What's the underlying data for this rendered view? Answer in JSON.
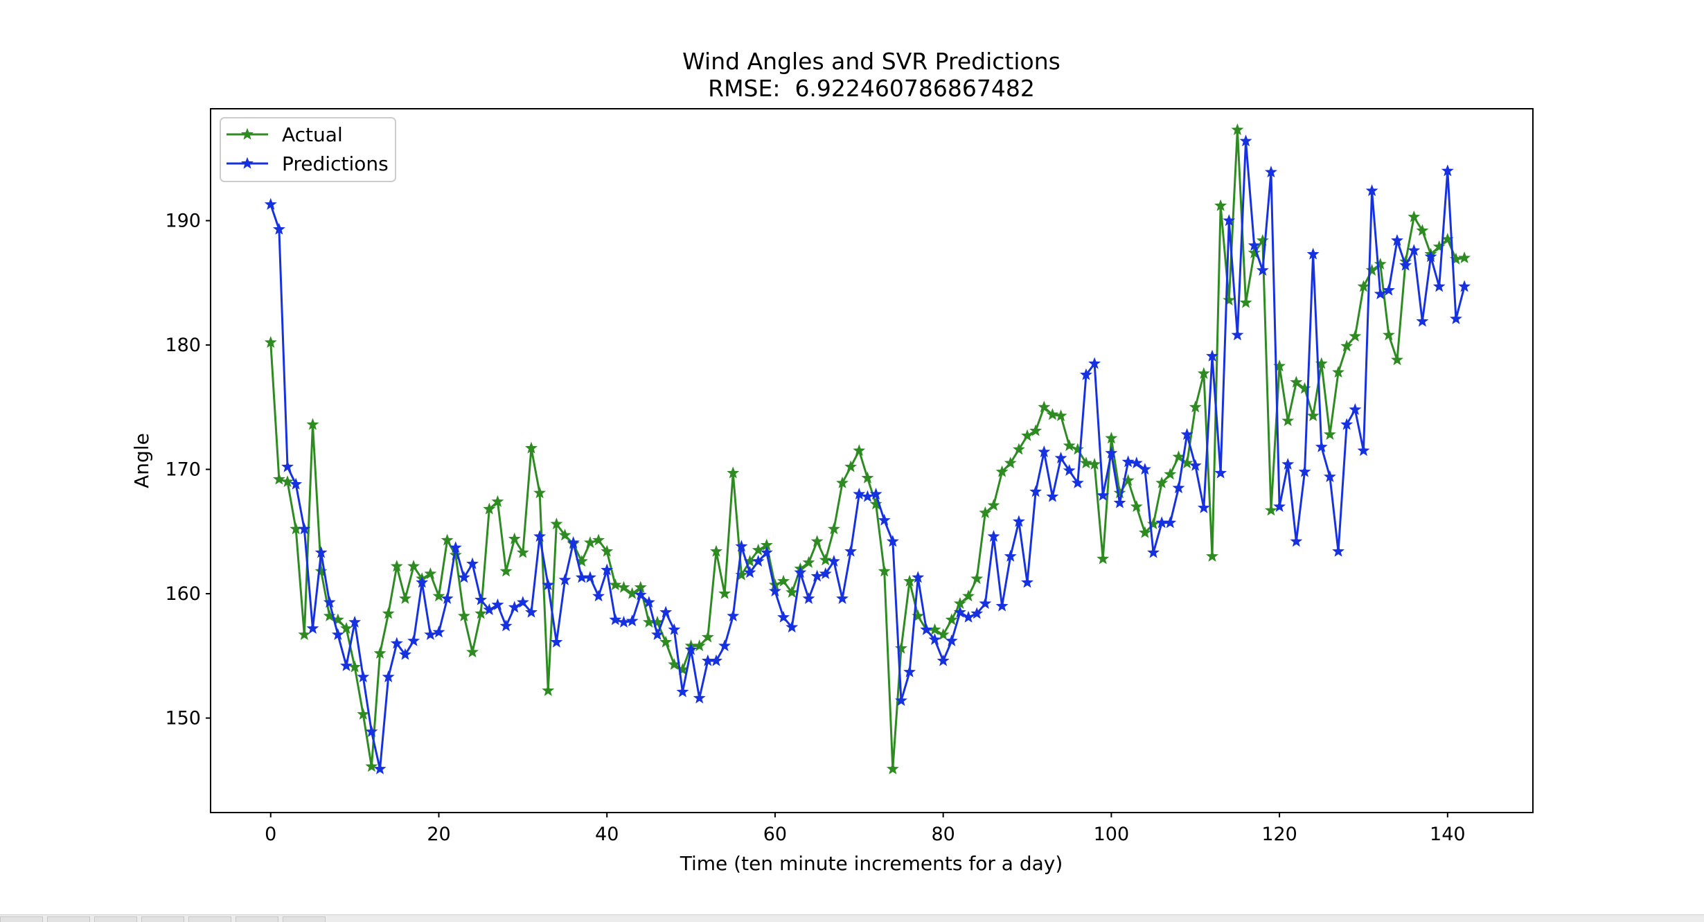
{
  "chart_data": {
    "type": "line",
    "title": "Wind Angles and SVR Predictions",
    "subtitle": "RMSE:  6.922460786867482",
    "xlabel": "Time (ten minute increments for a day)",
    "ylabel": "Angle",
    "xlim": [
      -7.15,
      150.15
    ],
    "ylim": [
      142.4,
      199.0
    ],
    "xticks": [
      0,
      20,
      40,
      60,
      80,
      100,
      120,
      140
    ],
    "yticks": [
      150,
      160,
      170,
      180,
      190
    ],
    "grid": false,
    "legend_position": "upper-left",
    "series": [
      {
        "name": "Actual",
        "color": "#2e8b22",
        "marker": "star",
        "values": [
          180.2,
          169.2,
          169.0,
          165.2,
          156.7,
          173.6,
          161.8,
          158.2,
          157.9,
          157.2,
          154.1,
          150.3,
          146.1,
          155.2,
          158.4,
          162.2,
          159.6,
          162.2,
          161.2,
          161.6,
          159.8,
          164.3,
          163.1,
          158.2,
          155.3,
          158.4,
          166.8,
          167.4,
          161.8,
          164.4,
          163.3,
          171.7,
          168.1,
          152.2,
          165.6,
          164.7,
          164.0,
          162.6,
          164.1,
          164.3,
          163.4,
          160.7,
          160.5,
          160.0,
          160.5,
          157.7,
          157.7,
          156.1,
          154.3,
          153.9,
          155.8,
          155.8,
          156.5,
          163.4,
          160.0,
          169.7,
          161.5,
          162.6,
          163.5,
          163.9,
          160.7,
          161.0,
          160.1,
          162.0,
          162.5,
          164.2,
          162.7,
          165.2,
          168.9,
          170.2,
          171.5,
          169.3,
          167.2,
          161.8,
          145.9,
          155.6,
          161.0,
          158.2,
          157.1,
          157.1,
          156.7,
          157.9,
          159.2,
          159.8,
          161.2,
          166.5,
          167.1,
          169.8,
          170.5,
          171.6,
          172.7,
          173.1,
          175.0,
          174.4,
          174.3,
          171.9,
          171.6,
          170.5,
          170.4,
          162.8,
          172.5,
          168.1,
          169.1,
          167.0,
          164.9,
          165.6,
          168.9,
          169.6,
          171.0,
          170.5,
          175.0,
          177.7,
          163.0,
          191.2,
          183.6,
          197.3,
          183.4,
          187.4,
          188.4,
          166.7,
          178.3,
          173.9,
          177.0,
          176.5,
          174.3,
          178.5,
          172.8,
          177.8,
          179.9,
          180.7,
          184.7,
          186.0,
          186.5,
          180.8,
          178.8,
          186.7,
          190.3,
          189.2,
          187.3,
          187.9,
          188.5,
          186.9,
          187.0
        ]
      },
      {
        "name": "Predictions",
        "color": "#1632e0",
        "marker": "star",
        "values": [
          191.3,
          189.3,
          170.2,
          168.8,
          165.2,
          157.2,
          163.3,
          159.3,
          156.7,
          154.2,
          157.7,
          153.3,
          148.9,
          145.9,
          153.3,
          156.0,
          155.1,
          156.2,
          160.9,
          156.7,
          156.9,
          159.6,
          163.7,
          161.3,
          162.4,
          159.5,
          158.7,
          159.1,
          157.4,
          158.9,
          159.3,
          158.5,
          164.6,
          160.7,
          156.1,
          161.1,
          164.1,
          161.3,
          161.3,
          159.8,
          161.9,
          157.9,
          157.7,
          157.8,
          159.9,
          159.3,
          156.7,
          158.5,
          157.1,
          152.1,
          155.5,
          151.6,
          154.6,
          154.6,
          155.8,
          158.2,
          163.8,
          161.7,
          162.6,
          163.3,
          160.2,
          158.1,
          157.3,
          161.7,
          159.6,
          161.4,
          161.6,
          162.6,
          159.6,
          163.4,
          168.0,
          167.8,
          168.0,
          165.9,
          164.2,
          151.4,
          153.7,
          161.3,
          157.1,
          156.3,
          154.6,
          156.2,
          158.5,
          158.1,
          158.4,
          159.2,
          164.6,
          159.0,
          163.0,
          165.8,
          160.9,
          168.2,
          171.4,
          167.8,
          170.9,
          169.9,
          168.9,
          177.6,
          178.5,
          167.9,
          171.3,
          167.3,
          170.6,
          170.5,
          170.0,
          163.3,
          165.7,
          165.7,
          168.5,
          172.8,
          170.3,
          166.9,
          179.1,
          169.7,
          190.0,
          180.8,
          196.4,
          188.0,
          186.0,
          193.9,
          167.0,
          170.4,
          164.2,
          169.8,
          187.3,
          171.8,
          169.4,
          163.4,
          173.6,
          174.8,
          171.5,
          192.4,
          184.1,
          184.4,
          188.4,
          186.4,
          187.6,
          181.9,
          187.1,
          184.7,
          194.0,
          182.1,
          184.7
        ]
      }
    ]
  }
}
